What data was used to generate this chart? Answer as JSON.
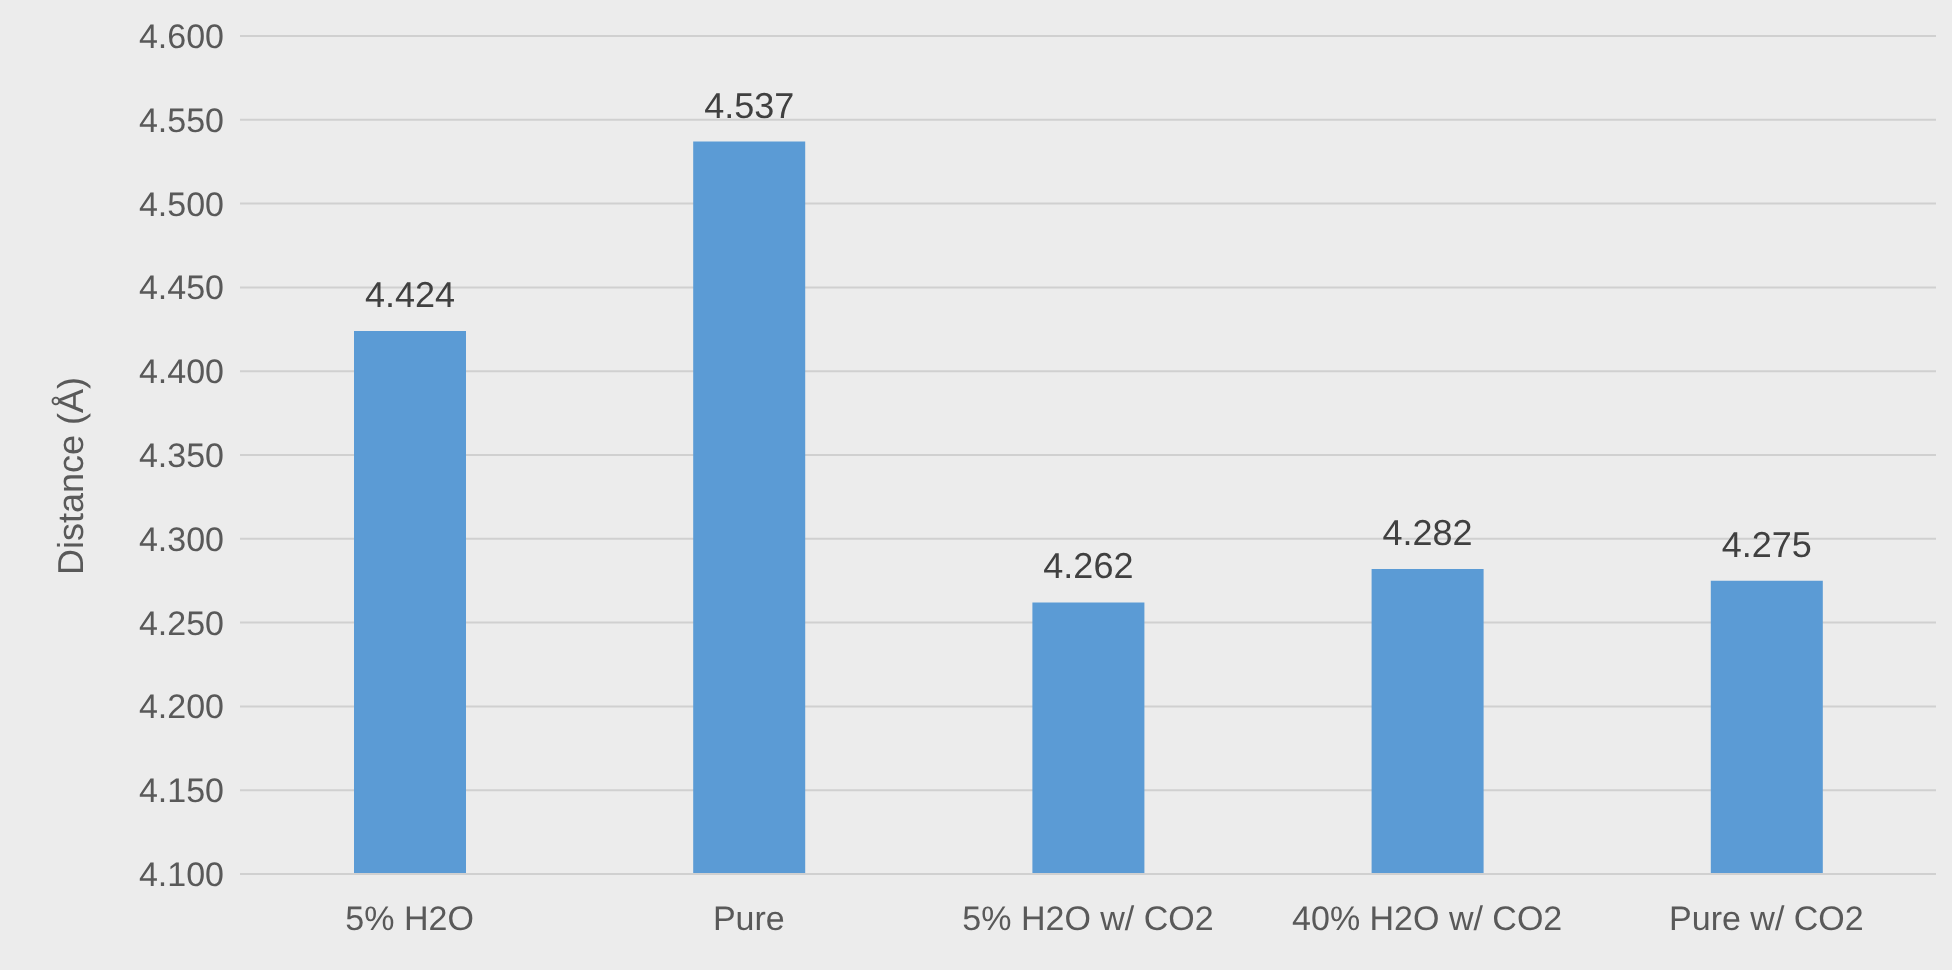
{
  "chart_data": {
    "type": "bar",
    "ylabel": "Distance (Å)",
    "categories": [
      "5% H2O",
      "Pure",
      "5% H2O w/ CO2",
      "40% H2O w/ CO2",
      "Pure w/ CO2"
    ],
    "values": [
      4.424,
      4.537,
      4.262,
      4.282,
      4.275
    ],
    "color": "#5b9bd5",
    "ylim": [
      4.1,
      4.6
    ],
    "yticks": [
      {
        "value": 4.1,
        "label": "4.100"
      },
      {
        "value": 4.15,
        "label": "4.150"
      },
      {
        "value": 4.2,
        "label": "4.200"
      },
      {
        "value": 4.25,
        "label": "4.250"
      },
      {
        "value": 4.3,
        "label": "4.300"
      },
      {
        "value": 4.35,
        "label": "4.350"
      },
      {
        "value": 4.4,
        "label": "4.400"
      },
      {
        "value": 4.45,
        "label": "4.450"
      },
      {
        "value": 4.5,
        "label": "4.500"
      },
      {
        "value": 4.55,
        "label": "4.550"
      },
      {
        "value": 4.6,
        "label": "4.600"
      }
    ],
    "grid": "y",
    "data_labels": true
  }
}
